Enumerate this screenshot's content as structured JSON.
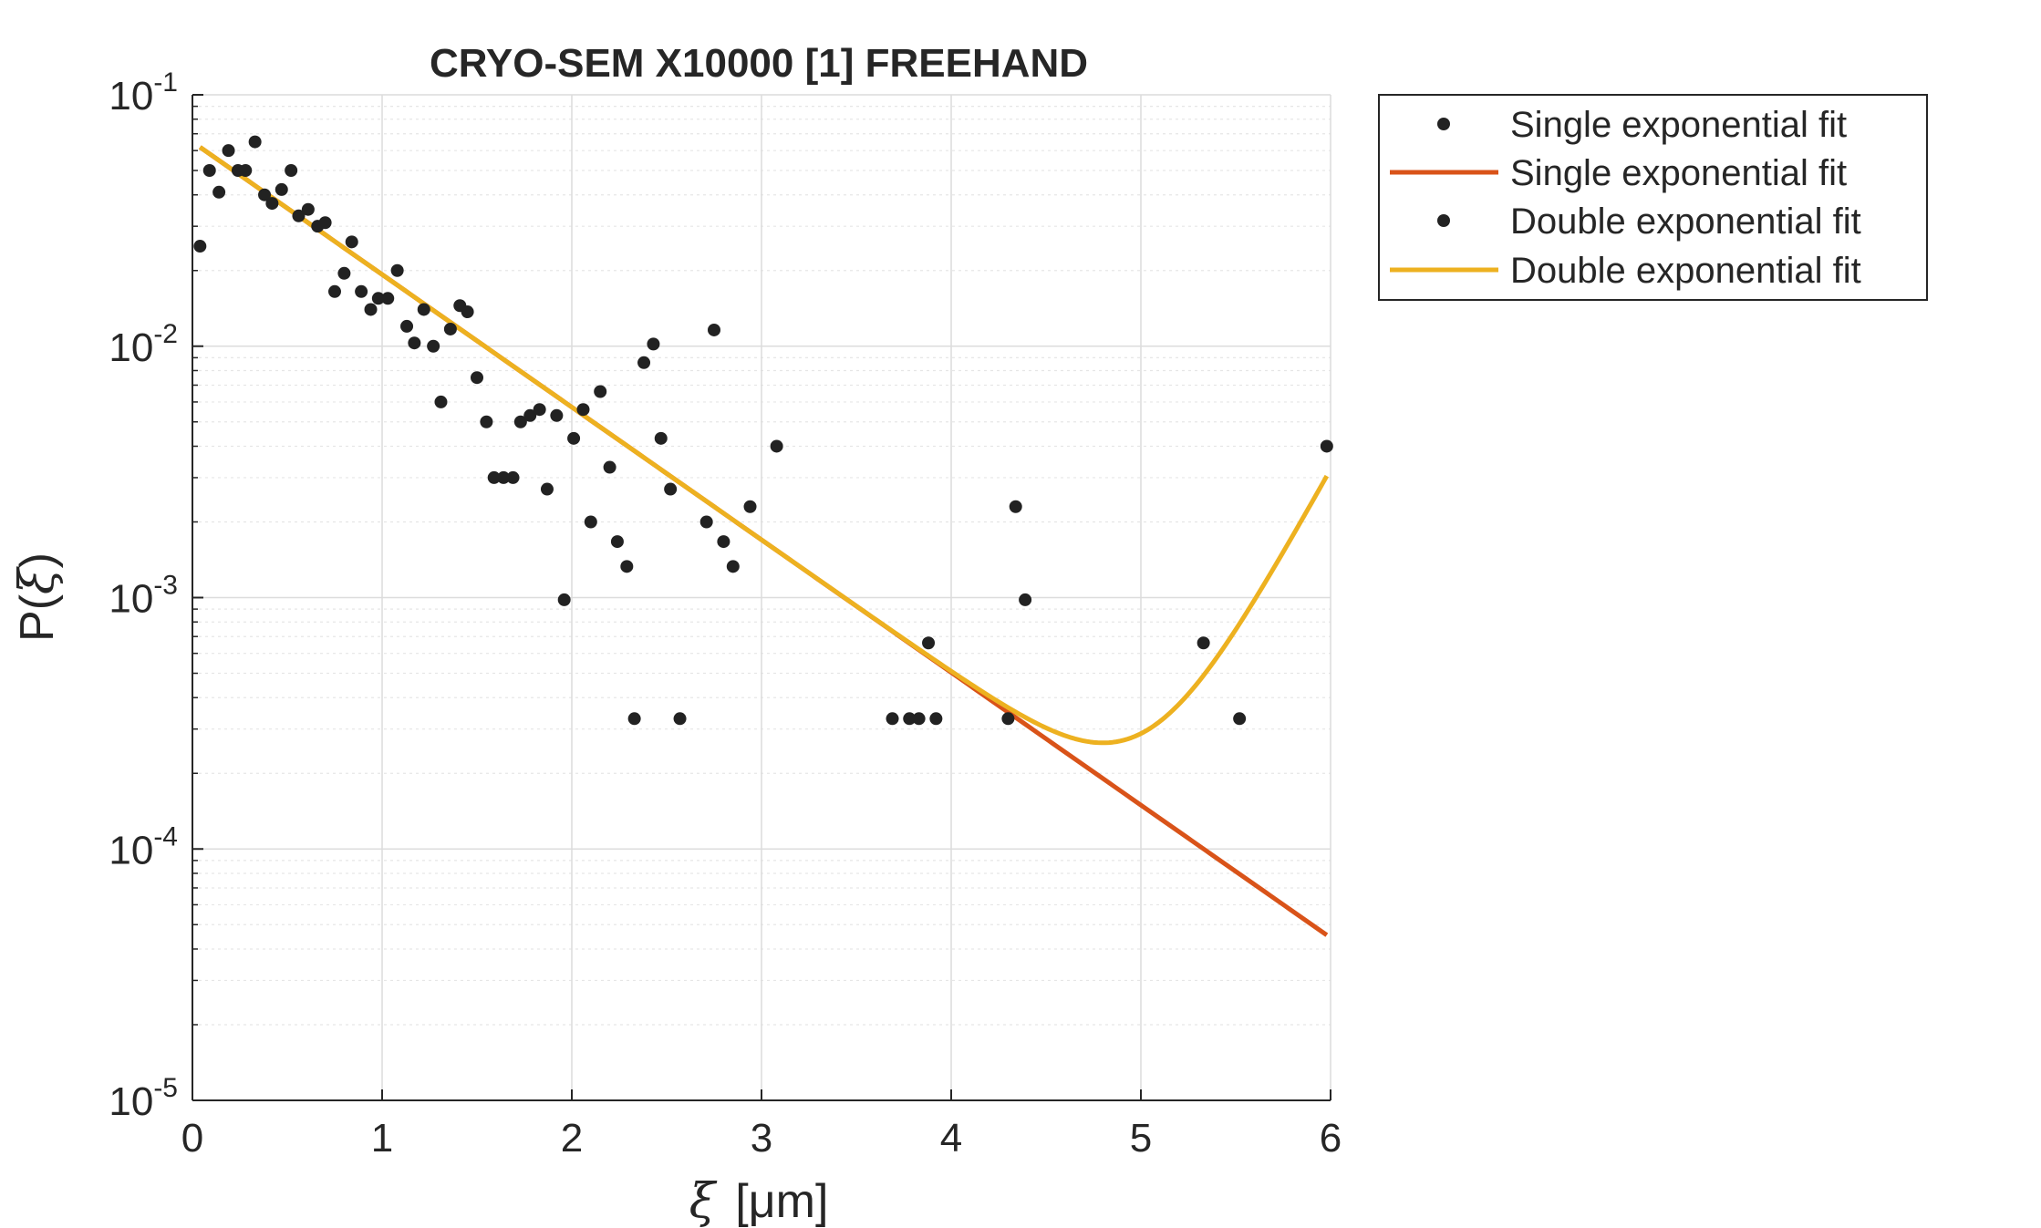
{
  "chart_data": {
    "type": "scatter",
    "title": "CRYO-SEM X10000 [1] FREEHAND",
    "xlabel": {
      "symbol": "ξ",
      "unit": "[μm]"
    },
    "ylabel": {
      "main": "P(",
      "symbol": "ξ",
      "close": ")"
    },
    "x_range": [
      0,
      6
    ],
    "y_range": [
      1e-05,
      0.1
    ],
    "y_scale": "log",
    "grid": true,
    "legend_placement": "outside-right-top",
    "x_ticks": [
      {
        "value": 0,
        "label": "0"
      },
      {
        "value": 1,
        "label": "1"
      },
      {
        "value": 2,
        "label": "2"
      },
      {
        "value": 3,
        "label": "3"
      },
      {
        "value": 4,
        "label": "4"
      },
      {
        "value": 5,
        "label": "5"
      },
      {
        "value": 6,
        "label": "6"
      }
    ],
    "y_ticks": [
      {
        "value": 0.1,
        "base": "10",
        "exp": "-1"
      },
      {
        "value": 0.01,
        "base": "10",
        "exp": "-2"
      },
      {
        "value": 0.001,
        "base": "10",
        "exp": "-3"
      },
      {
        "value": 0.0001,
        "base": "10",
        "exp": "-4"
      },
      {
        "value": 1e-05,
        "base": "10",
        "exp": "-5"
      }
    ],
    "colors": {
      "points": "#222222",
      "single": "#d95319",
      "double": "#edb120",
      "grid": "#dcdcdc",
      "axis": "#262626"
    },
    "legend": [
      {
        "label": "Single exponential fit",
        "kind": "marker"
      },
      {
        "label": "Single exponential fit",
        "kind": "line-single"
      },
      {
        "label": "Double exponential fit",
        "kind": "marker"
      },
      {
        "label": "Double exponential fit",
        "kind": "line-double"
      }
    ],
    "series": [
      {
        "kind": "scatter",
        "points": [
          [
            0.04,
            0.025
          ],
          [
            0.09,
            0.05
          ],
          [
            0.14,
            0.041
          ],
          [
            0.19,
            0.06
          ],
          [
            0.24,
            0.05
          ],
          [
            0.28,
            0.05
          ],
          [
            0.33,
            0.065
          ],
          [
            0.38,
            0.04
          ],
          [
            0.42,
            0.037
          ],
          [
            0.47,
            0.042
          ],
          [
            0.52,
            0.05
          ],
          [
            0.56,
            0.033
          ],
          [
            0.61,
            0.035
          ],
          [
            0.66,
            0.03
          ],
          [
            0.7,
            0.031
          ],
          [
            0.75,
            0.0165
          ],
          [
            0.8,
            0.0195
          ],
          [
            0.84,
            0.026
          ],
          [
            0.89,
            0.0165
          ],
          [
            0.94,
            0.014
          ],
          [
            0.98,
            0.0155
          ],
          [
            1.03,
            0.0155
          ],
          [
            1.08,
            0.02
          ],
          [
            1.13,
            0.012
          ],
          [
            1.17,
            0.0103
          ],
          [
            1.22,
            0.014
          ],
          [
            1.27,
            0.01
          ],
          [
            1.31,
            0.006
          ],
          [
            1.36,
            0.0117
          ],
          [
            1.41,
            0.0145
          ],
          [
            1.45,
            0.0137
          ],
          [
            1.5,
            0.0075
          ],
          [
            1.55,
            0.005
          ],
          [
            1.59,
            0.003
          ],
          [
            1.64,
            0.003
          ],
          [
            1.69,
            0.003
          ],
          [
            1.73,
            0.005
          ],
          [
            1.78,
            0.0053
          ],
          [
            1.83,
            0.0056
          ],
          [
            1.87,
            0.0027
          ],
          [
            1.92,
            0.0053
          ],
          [
            1.96,
            0.00098
          ],
          [
            2.01,
            0.0043
          ],
          [
            2.06,
            0.0056
          ],
          [
            2.1,
            0.002
          ],
          [
            2.15,
            0.0066
          ],
          [
            2.2,
            0.0033
          ],
          [
            2.24,
            0.00167
          ],
          [
            2.29,
            0.00133
          ],
          [
            2.33,
            0.00033
          ],
          [
            2.38,
            0.0086
          ],
          [
            2.43,
            0.0102
          ],
          [
            2.47,
            0.0043
          ],
          [
            2.52,
            0.0027
          ],
          [
            2.57,
            0.00033
          ],
          [
            2.71,
            0.002
          ],
          [
            2.75,
            0.0116
          ],
          [
            2.8,
            0.00167
          ],
          [
            2.85,
            0.00133
          ],
          [
            2.94,
            0.0023
          ],
          [
            3.08,
            0.004
          ],
          [
            3.69,
            0.00033
          ],
          [
            3.78,
            0.00033
          ],
          [
            3.83,
            0.00033
          ],
          [
            3.88,
            0.00066
          ],
          [
            3.92,
            0.00033
          ],
          [
            4.3,
            0.00033
          ],
          [
            4.34,
            0.0023
          ],
          [
            4.39,
            0.00098
          ],
          [
            5.33,
            0.00066
          ],
          [
            5.52,
            0.00033
          ],
          [
            5.98,
            0.004
          ]
        ]
      },
      {
        "kind": "line",
        "name": "single",
        "model": "exp",
        "amp": 0.065,
        "rate": 1.215,
        "x_from": 0.04,
        "x_to": 5.98
      },
      {
        "kind": "line",
        "name": "double",
        "model": "double-exp",
        "amp": 0.065,
        "rate": 1.215,
        "amp2": 2.1e-11,
        "rate2": 3.14,
        "x_from": 0.04,
        "x_to": 5.98
      }
    ]
  }
}
